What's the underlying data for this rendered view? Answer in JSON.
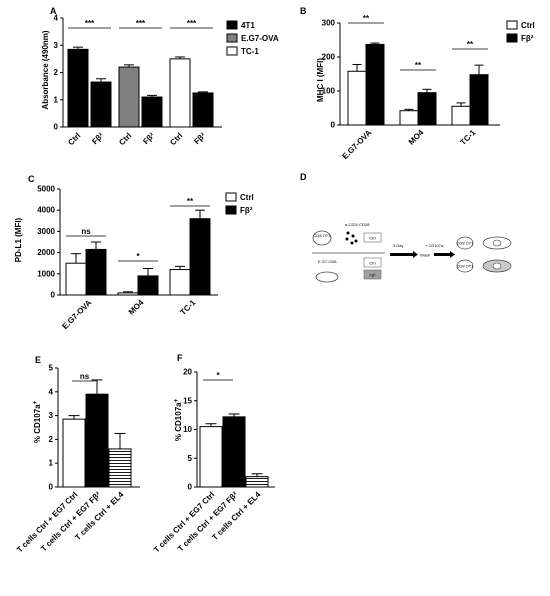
{
  "colors": {
    "black": "#000000",
    "grey": "#808080",
    "white": "#ffffff",
    "hatch": "#000000"
  },
  "chart_data": [
    {
      "panel": "A",
      "type": "bar",
      "ylabel": "Absorbance (490nm)",
      "ylim": [
        0,
        4
      ],
      "yticks": [
        0,
        1,
        2,
        3,
        4
      ],
      "groups": [
        "4T1",
        "E.G7-OVA",
        "TC-1"
      ],
      "categories": [
        "Ctrl",
        "Fβ²"
      ],
      "legend": [
        "4T1",
        "E.G7-OVA",
        "TC-1"
      ],
      "values": [
        [
          2.85,
          1.65
        ],
        [
          2.2,
          1.1
        ],
        [
          2.5,
          1.25
        ]
      ],
      "errors": [
        [
          0.08,
          0.12
        ],
        [
          0.08,
          0.06
        ],
        [
          0.07,
          0.04
        ]
      ],
      "significance": [
        "***",
        "***",
        "***"
      ]
    },
    {
      "panel": "B",
      "type": "bar",
      "ylabel": "MHC I (MFI)",
      "ylim": [
        0,
        300
      ],
      "yticks": [
        0,
        100,
        200,
        300
      ],
      "categories": [
        "E.G7-OVA",
        "MO4",
        "TC-1"
      ],
      "legend": [
        "Ctrl",
        "Fβ²"
      ],
      "series": [
        {
          "name": "Ctrl",
          "values": [
            158,
            42,
            55
          ],
          "errors": [
            20,
            4,
            10
          ]
        },
        {
          "name": "Fβ²",
          "values": [
            237,
            95,
            148
          ],
          "errors": [
            4,
            10,
            28
          ]
        }
      ],
      "significance": [
        "**",
        "**",
        "**"
      ]
    },
    {
      "panel": "C",
      "type": "bar",
      "ylabel": "PD-L1 (MFI)",
      "ylim": [
        0,
        5000
      ],
      "yticks": [
        0,
        1000,
        2000,
        3000,
        4000,
        5000
      ],
      "categories": [
        "E.G7-OVA",
        "MO4",
        "TC-1"
      ],
      "legend": [
        "Ctrl",
        "Fβ²"
      ],
      "series": [
        {
          "name": "Ctrl",
          "values": [
            1500,
            100,
            1200
          ],
          "errors": [
            450,
            50,
            150
          ]
        },
        {
          "name": "Fβ²",
          "values": [
            2150,
            900,
            3600
          ],
          "errors": [
            350,
            350,
            400
          ]
        }
      ],
      "significance": [
        "ns",
        "*",
        "**"
      ]
    },
    {
      "panel": "E",
      "type": "bar",
      "ylabel": "% CD107a+",
      "ylim": [
        0,
        5
      ],
      "yticks": [
        0,
        1,
        2,
        3,
        4,
        5
      ],
      "categories": [
        "T cells Ctrl + EG7 Ctrl",
        "T cells Ctrl + EG7 Fβ²",
        "T cells Ctrl + EL4"
      ],
      "values": [
        2.85,
        3.9,
        1.6
      ],
      "errors": [
        0.15,
        0.6,
        0.65
      ],
      "significance": [
        "ns"
      ]
    },
    {
      "panel": "F",
      "type": "bar",
      "ylabel": "% CD107a+",
      "ylim": [
        0,
        20
      ],
      "yticks": [
        0,
        5,
        10,
        15,
        20
      ],
      "categories": [
        "T cells Ctrl + EG7 Ctrl",
        "T cells Ctrl + EG7 Fβ²",
        "T cells Ctrl + EL4"
      ],
      "values": [
        10.5,
        12.2,
        1.8
      ],
      "errors": [
        0.5,
        0.5,
        0.5
      ],
      "significance": [
        "*"
      ]
    }
  ],
  "panel_letters": [
    "A",
    "B",
    "C",
    "D",
    "E",
    "F"
  ],
  "diagram_d": {
    "antibody_label": "α-CD3/-CD28",
    "cell_label": "CD8 OT1",
    "ctrl_box": "Ctrl",
    "fb_box": "Fβ²",
    "target_label": "E.G7-OVA",
    "arrow_label": "3 Day",
    "wash_label": "Wash",
    "cd107a_label": "+ CD107a"
  }
}
